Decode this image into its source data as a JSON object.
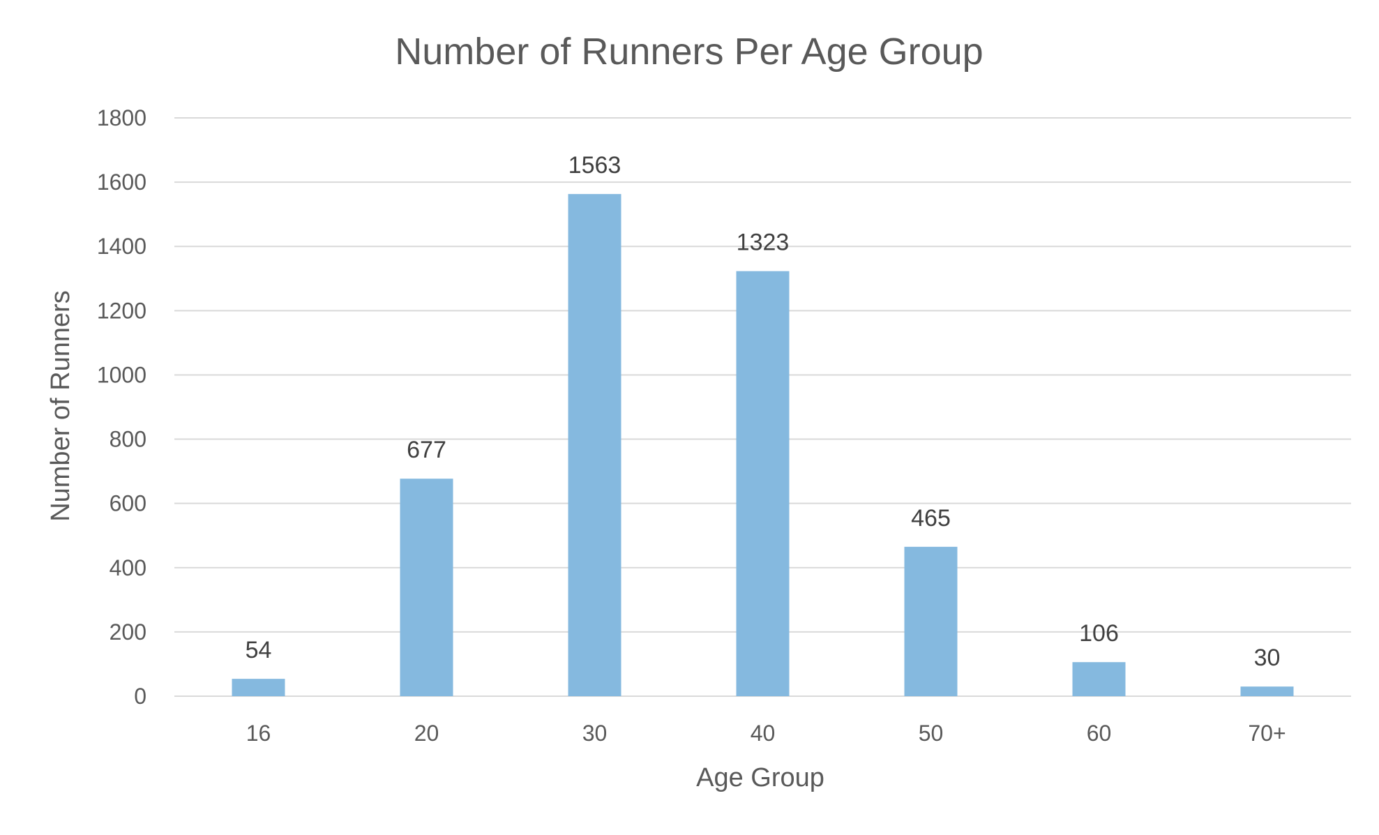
{
  "chart_data": {
    "type": "bar",
    "title": "Number of Runners Per Age Group",
    "xlabel": "Age Group",
    "ylabel": "Number of Runners",
    "categories": [
      "16",
      "20",
      "30",
      "40",
      "50",
      "60",
      "70+"
    ],
    "values": [
      54,
      677,
      1563,
      1323,
      465,
      106,
      30
    ],
    "ylim": [
      0,
      1800
    ],
    "yticks": [
      0,
      200,
      400,
      600,
      800,
      1000,
      1200,
      1400,
      1600,
      1800
    ],
    "grid": true,
    "legend": "none",
    "data_labels": true,
    "colors": {
      "bar": "#85b9df",
      "grid": "#d9d9d9",
      "text": "#595959",
      "data_label": "#404040"
    }
  }
}
